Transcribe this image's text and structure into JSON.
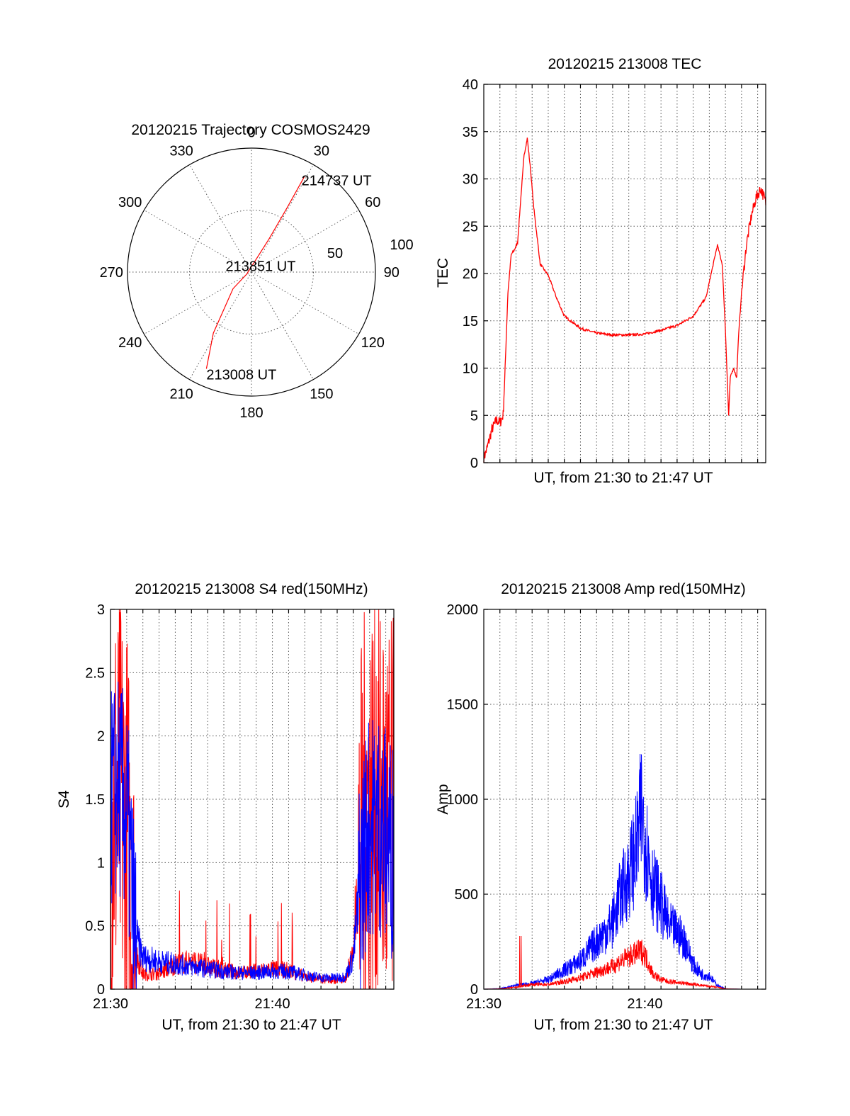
{
  "colors": {
    "red": "#ff0000",
    "blue": "#0000ff",
    "grid": "#555555",
    "axis": "#000000"
  },
  "chart_data": [
    {
      "type": "polar",
      "title": "20120215 Trajectory COSMOS2429",
      "angle_labels": [
        "0",
        "30",
        "60",
        "90",
        "120",
        "150",
        "180",
        "210",
        "240",
        "270",
        "300",
        "330"
      ],
      "radial_labels": [
        "50",
        "100"
      ],
      "rlim": [
        0,
        100
      ],
      "grid": true,
      "series": [
        {
          "color": "red",
          "points": [
            {
              "az": 205,
              "r": 86,
              "label": "213008 UT"
            },
            {
              "az": 212,
              "r": 58
            },
            {
              "az": 228,
              "r": 20
            },
            {
              "az": 248,
              "r": 4,
              "label": "213851 UT"
            },
            {
              "az": 28,
              "r": 30
            },
            {
              "az": 29,
              "r": 60
            },
            {
              "az": 29,
              "r": 88,
              "label": "214737 UT"
            }
          ]
        }
      ]
    },
    {
      "type": "line",
      "title": "20120215 213008 TEC",
      "xlabel": "UT, from 21:30 to 21:47 UT",
      "ylabel": "TEC",
      "xlim": [
        0,
        17.5
      ],
      "ylim": [
        0,
        40
      ],
      "yticks": [
        "0",
        "5",
        "10",
        "15",
        "20",
        "25",
        "30",
        "35",
        "40"
      ],
      "xticks": [],
      "grid": true,
      "series": [
        {
          "color": "red",
          "x": [
            0,
            0.2,
            0.5,
            0.8,
            1.0,
            1.2,
            1.3,
            1.5,
            1.7,
            1.9,
            2.1,
            2.3,
            2.5,
            2.7,
            2.9,
            3.1,
            3.3,
            3.5,
            4.0,
            4.5,
            5.0,
            6.0,
            7.0,
            8.0,
            9.0,
            10.0,
            11.0,
            12.0,
            13.0,
            13.8,
            14.5,
            14.8,
            15.0,
            15.2,
            15.3,
            15.5,
            15.7,
            15.8,
            16.0,
            16.3,
            16.6,
            16.9,
            17.2,
            17.5
          ],
          "y": [
            0.5,
            1.5,
            3.5,
            4.5,
            4.2,
            5.0,
            9,
            18,
            22,
            22.5,
            23.3,
            28,
            32.5,
            34.3,
            31,
            27,
            24,
            21,
            19.8,
            17.5,
            15.5,
            14.2,
            13.7,
            13.5,
            13.5,
            13.6,
            14.0,
            14.5,
            15.5,
            17.5,
            23,
            21,
            14,
            5,
            9,
            10,
            9,
            13,
            18,
            23,
            26,
            28,
            29,
            27.5
          ]
        }
      ]
    },
    {
      "type": "line",
      "title": "20120215 213008 S4 red(150MHz)",
      "xlabel": "UT, from 21:30 to 21:47 UT",
      "ylabel": "S4",
      "xlim": [
        0,
        17.5
      ],
      "ylim": [
        0,
        3
      ],
      "yticks": [
        "0",
        "0.5",
        "1",
        "1.5",
        "2",
        "2.5",
        "3"
      ],
      "xticks": [
        {
          "value": 0,
          "label": "21:30"
        },
        {
          "value": 10,
          "label": "21:40"
        }
      ],
      "grid": true,
      "series": [
        {
          "color": "red",
          "x": [
            0,
            0.5,
            1.0,
            1.5,
            2.0,
            3,
            4,
            5,
            6,
            7,
            8,
            9,
            10,
            11,
            12,
            13,
            14,
            14.5,
            15.0,
            15.3,
            15.8,
            16.5,
            17.0,
            17.5
          ],
          "y": [
            1.4,
            1.5,
            1.2,
            0.3,
            0.12,
            0.12,
            0.2,
            0.22,
            0.18,
            0.15,
            0.13,
            0.14,
            0.16,
            0.15,
            0.1,
            0.08,
            0.07,
            0.08,
            0.3,
            0.8,
            1.4,
            1.5,
            1.3,
            1.2
          ]
        },
        {
          "color": "blue",
          "x": [
            0,
            0.5,
            1.0,
            1.5,
            2.0,
            3,
            4,
            5,
            6,
            7,
            8,
            9,
            10,
            11,
            12,
            13,
            14,
            14.5,
            15.0,
            15.3,
            15.8,
            16.5,
            17.0,
            17.5
          ],
          "y": [
            1.5,
            1.6,
            1.4,
            0.45,
            0.25,
            0.22,
            0.2,
            0.18,
            0.16,
            0.14,
            0.13,
            0.13,
            0.14,
            0.14,
            0.11,
            0.09,
            0.09,
            0.1,
            0.25,
            0.7,
            1.25,
            1.35,
            1.2,
            1.1
          ]
        }
      ]
    },
    {
      "type": "line",
      "title": "20120215 213008 Amp red(150MHz)",
      "xlabel": "UT, from 21:30 to 21:47 UT",
      "ylabel": "Amp",
      "xlim": [
        0,
        17.5
      ],
      "ylim": [
        0,
        2000
      ],
      "yticks": [
        "0",
        "500",
        "1000",
        "1500",
        "2000"
      ],
      "xticks": [
        {
          "value": 0,
          "label": "21:30"
        },
        {
          "value": 10,
          "label": "21:40"
        }
      ],
      "grid": true,
      "series": [
        {
          "color": "blue",
          "x": [
            0,
            1,
            2,
            3,
            4,
            5,
            6,
            7,
            8,
            8.5,
            9,
            9.5,
            9.8,
            10,
            10.5,
            11,
            11.5,
            12,
            12.5,
            13,
            13.5,
            14,
            14.5,
            15,
            16,
            17.5
          ],
          "y": [
            0,
            3,
            20,
            30,
            50,
            100,
            150,
            250,
            350,
            500,
            600,
            750,
            950,
            800,
            550,
            450,
            330,
            300,
            250,
            130,
            80,
            70,
            20,
            2,
            0,
            0
          ]
        },
        {
          "color": "red",
          "x": [
            0,
            1,
            2,
            3,
            4,
            5,
            6,
            7,
            8,
            8.5,
            9,
            9.5,
            9.8,
            10,
            10.5,
            11,
            11.5,
            12,
            12.5,
            13,
            13.5,
            14,
            14.5,
            15,
            16,
            17.5
          ],
          "y": [
            0,
            2,
            10,
            25,
            25,
            40,
            60,
            90,
            120,
            150,
            170,
            190,
            200,
            180,
            80,
            50,
            40,
            35,
            30,
            25,
            20,
            15,
            10,
            2,
            0,
            0
          ]
        }
      ]
    }
  ]
}
